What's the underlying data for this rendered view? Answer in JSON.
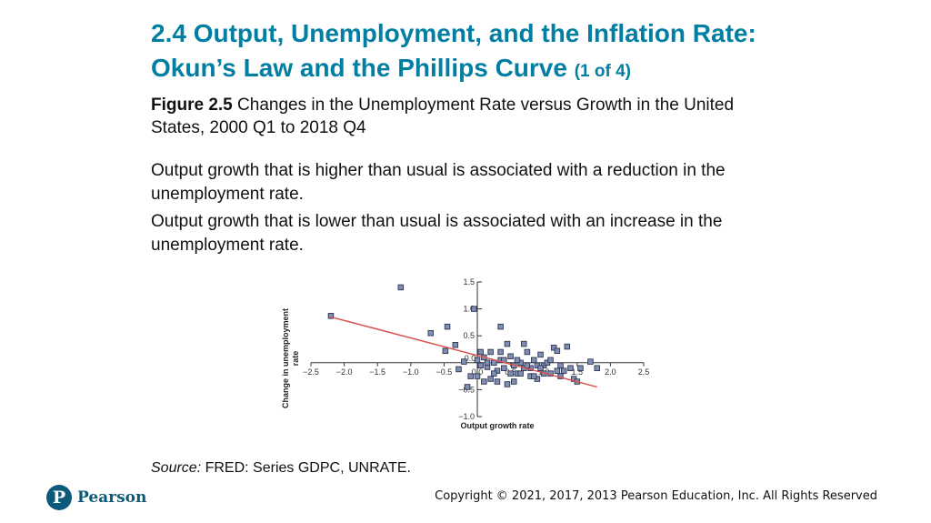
{
  "slide": {
    "title": "2.4 Output, Unemployment, and the Inflation Rate: Okun’s Law and the Phillips Curve",
    "title_part": "(1 of 4)",
    "figure_label": "Figure 2.5",
    "figure_caption": "Changes in the Unemployment Rate versus Growth in the United States, 2000 Q1 to 2018 Q4",
    "bullets": [
      "Output growth that is higher than usual is associated with a reduction in the unemployment rate.",
      "Output growth that is lower than usual is associated with an increase in the unemployment rate."
    ],
    "source_label": "Source:",
    "source_text": "FRED: Series GDPC, UNRATE.",
    "logo_letter": "P",
    "logo_text": "Pearson",
    "copyright": "Copyright © 2021, 2017, 2013 Pearson Education, Inc. All Rights Reserved"
  },
  "chart_data": {
    "type": "scatter",
    "xlabel": "Output growth rate",
    "ylabel": "Change in unemployment rate",
    "xlim": [
      -2.5,
      2.5
    ],
    "ylim": [
      -1.0,
      1.5
    ],
    "xticks": [
      -2.5,
      -2.0,
      -1.5,
      -1.0,
      -0.5,
      0.0,
      0.5,
      1.0,
      1.5,
      2.0,
      2.5
    ],
    "yticks": [
      -1.0,
      -0.5,
      0.0,
      0.5,
      1.0,
      1.5
    ],
    "xtick_labels": [
      "−2.5",
      "−2.0",
      "−1.5",
      "−1.0",
      "−0.5",
      "0.0",
      "0.5",
      "1.0",
      "1.5",
      "2.0",
      "2.5"
    ],
    "ytick_labels": [
      "−1.0",
      "−0.5",
      "0.0",
      "0.5",
      "1.0",
      "1.5"
    ],
    "grid": false,
    "marker_color": "#7f8fb4",
    "marker_edge_color": "#2f3550",
    "fit_color": "#d9534f",
    "points": [
      [
        -2.2,
        0.87
      ],
      [
        -1.15,
        1.4
      ],
      [
        -0.45,
        0.67
      ],
      [
        -0.7,
        0.55
      ],
      [
        -0.33,
        0.33
      ],
      [
        -0.48,
        0.22
      ],
      [
        0.35,
        0.67
      ],
      [
        -0.05,
        1.0
      ],
      [
        -0.28,
        -0.12
      ],
      [
        -0.1,
        -0.25
      ],
      [
        -0.15,
        -0.45
      ],
      [
        0.0,
        0.05
      ],
      [
        0.05,
        -0.05
      ],
      [
        0.1,
        0.1
      ],
      [
        0.15,
        -0.08
      ],
      [
        0.2,
        0.2
      ],
      [
        0.25,
        0.0
      ],
      [
        0.3,
        -0.15
      ],
      [
        0.35,
        0.05
      ],
      [
        0.4,
        -0.1
      ],
      [
        0.45,
        0.35
      ],
      [
        0.5,
        0.12
      ],
      [
        0.55,
        -0.05
      ],
      [
        0.6,
        -0.2
      ],
      [
        0.65,
        0.0
      ],
      [
        0.7,
        0.35
      ],
      [
        0.75,
        0.2
      ],
      [
        0.8,
        -0.1
      ],
      [
        0.85,
        0.05
      ],
      [
        0.9,
        -0.3
      ],
      [
        0.95,
        0.15
      ],
      [
        1.0,
        -0.05
      ],
      [
        1.05,
        0.0
      ],
      [
        1.1,
        -0.2
      ],
      [
        1.15,
        0.28
      ],
      [
        1.2,
        0.22
      ],
      [
        1.25,
        -0.05
      ],
      [
        1.3,
        -0.15
      ],
      [
        1.35,
        0.3
      ],
      [
        1.4,
        -0.1
      ],
      [
        1.45,
        -0.3
      ],
      [
        1.5,
        -0.35
      ],
      [
        1.55,
        -0.1
      ],
      [
        1.7,
        0.02
      ],
      [
        1.8,
        -0.1
      ],
      [
        0.0,
        -0.25
      ],
      [
        0.1,
        -0.35
      ],
      [
        0.2,
        -0.3
      ],
      [
        0.3,
        -0.35
      ],
      [
        0.45,
        -0.4
      ],
      [
        0.55,
        -0.35
      ],
      [
        0.6,
        0.05
      ],
      [
        0.7,
        -0.1
      ],
      [
        0.8,
        -0.25
      ],
      [
        0.9,
        -0.05
      ],
      [
        1.0,
        -0.2
      ],
      [
        1.1,
        0.05
      ],
      [
        1.2,
        -0.15
      ],
      [
        0.5,
        -0.2
      ],
      [
        0.25,
        -0.2
      ],
      [
        0.15,
        0.0
      ],
      [
        0.35,
        0.2
      ],
      [
        0.65,
        -0.2
      ],
      [
        0.75,
        -0.05
      ],
      [
        0.85,
        -0.25
      ],
      [
        1.25,
        -0.25
      ],
      [
        -0.2,
        0.02
      ],
      [
        0.05,
        0.2
      ],
      [
        0.4,
        0.05
      ],
      [
        0.95,
        -0.1
      ]
    ],
    "fit_line": {
      "x": [
        -2.2,
        1.8
      ],
      "y": [
        0.85,
        -0.45
      ]
    }
  }
}
